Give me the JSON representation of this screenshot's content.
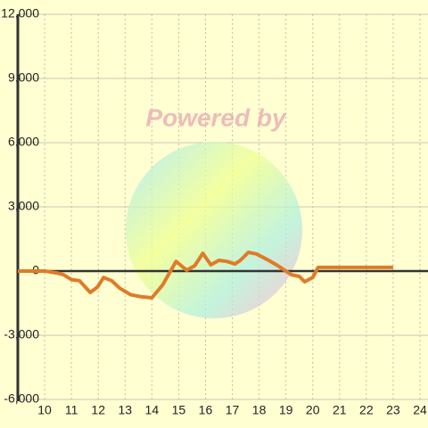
{
  "chart_data": {
    "type": "line",
    "watermark": "Powered by",
    "x": [
      9.0,
      10.0,
      10.5,
      10.7,
      11.0,
      11.3,
      11.7,
      11.97,
      12.2,
      12.5,
      12.8,
      13.2,
      13.6,
      14.0,
      14.4,
      14.9,
      15.3,
      15.6,
      15.9,
      16.2,
      16.5,
      16.8,
      17.1,
      17.3,
      17.6,
      17.9,
      18.3,
      18.7,
      19.2,
      19.5,
      19.7,
      20.0,
      20.2,
      23.0
    ],
    "series": [
      {
        "color": "#e07b28",
        "values": [
          0,
          0,
          -100,
          -170,
          -400,
          -450,
          -1000,
          -750,
          -300,
          -450,
          -800,
          -1100,
          -1200,
          -1250,
          -650,
          450,
          40,
          250,
          830,
          290,
          500,
          450,
          330,
          500,
          875,
          800,
          540,
          250,
          -170,
          -250,
          -500,
          -300,
          170,
          170
        ]
      }
    ],
    "xlim": [
      9,
      24.3
    ],
    "xticks": [
      10,
      11,
      12,
      13,
      14,
      15,
      16,
      17,
      18,
      19,
      20,
      21,
      22,
      23,
      24
    ],
    "ylim": [
      -6000,
      12000
    ],
    "yticks": [
      {
        "value": -6000,
        "label": "-6,000"
      },
      {
        "value": -3000,
        "label": "-3,000"
      },
      0,
      {
        "value": 3000,
        "label": "3,000"
      },
      {
        "value": 6000,
        "label": "6,000"
      },
      {
        "value": 9000,
        "label": "9,000"
      },
      {
        "value": 12000,
        "label": "12,000"
      }
    ],
    "grid": true
  }
}
